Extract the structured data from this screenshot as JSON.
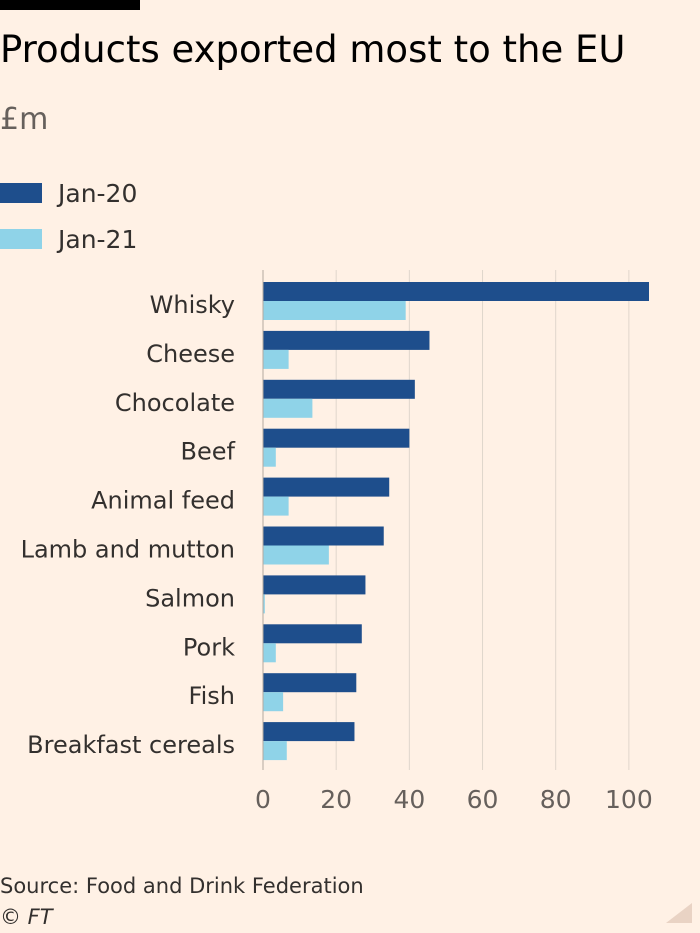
{
  "header": {
    "title": "Products exported most to the EU",
    "subtitle": "£m"
  },
  "colors": {
    "background": "#fff1e5",
    "series1": "#1e4e8c",
    "series2": "#8fd3e8",
    "grid": "#e0d6cc",
    "axis_text": "#66605c"
  },
  "legend": {
    "items": [
      {
        "label": "Jan-20",
        "color": "#1e4e8c"
      },
      {
        "label": "Jan-21",
        "color": "#8fd3e8"
      }
    ]
  },
  "chart_data": {
    "type": "bar",
    "orientation": "horizontal",
    "title": "Products exported most to the EU",
    "xlabel": "",
    "ylabel": "£m",
    "categories": [
      "Whisky",
      "Cheese",
      "Chocolate",
      "Beef",
      "Animal feed",
      "Lamb and mutton",
      "Salmon",
      "Pork",
      "Fish",
      "Breakfast cereals"
    ],
    "series": [
      {
        "name": "Jan-20",
        "values": [
          105.5,
          45.5,
          41.5,
          40,
          34.5,
          33,
          28,
          27,
          25.5,
          25
        ]
      },
      {
        "name": "Jan-21",
        "values": [
          39,
          7,
          13.5,
          3.5,
          7,
          18,
          0.5,
          3.5,
          5.5,
          6.5
        ]
      }
    ],
    "xlim": [
      0,
      105.5
    ],
    "xticks": [
      0,
      20,
      40,
      60,
      80,
      100
    ],
    "grid": true,
    "legend_position": "top-left"
  },
  "footer": {
    "source": "Source: Food and Drink Federation",
    "copyright": "© FT"
  }
}
